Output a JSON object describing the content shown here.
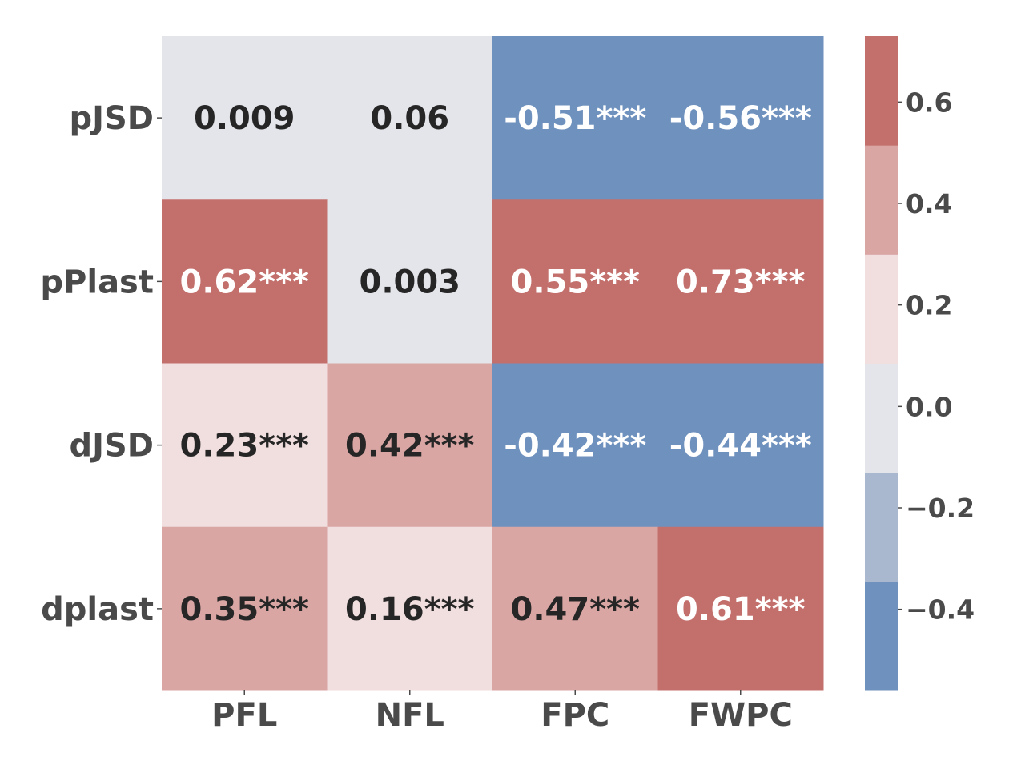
{
  "chart_data": {
    "type": "heatmap",
    "title": "",
    "xlabel": "",
    "ylabel": "",
    "x_categories": [
      "PFL",
      "NFL",
      "FPC",
      "FWPC"
    ],
    "y_categories": [
      "pJSD",
      "pPlast",
      "dJSD",
      "dplast"
    ],
    "values": [
      [
        0.009,
        0.06,
        -0.51,
        -0.56
      ],
      [
        0.62,
        0.003,
        0.55,
        0.73
      ],
      [
        0.23,
        0.42,
        -0.42,
        -0.44
      ],
      [
        0.35,
        0.16,
        0.47,
        0.61
      ]
    ],
    "annotations": [
      [
        "0.009",
        "0.06",
        "-0.51***",
        "-0.56***"
      ],
      [
        "0.62***",
        "0.003",
        "0.55***",
        "0.73***"
      ],
      [
        "0.23***",
        "0.42***",
        "-0.42***",
        "-0.44***"
      ],
      [
        "0.35***",
        "0.16***",
        "0.47***",
        "0.61***"
      ]
    ],
    "colorbar": {
      "range": [
        -0.56,
        0.73
      ],
      "ticks": [
        0.6,
        0.4,
        0.2,
        0.0,
        -0.2,
        -0.4
      ],
      "tick_labels": [
        "0.6",
        "0.4",
        "0.2",
        "0.0",
        "−0.2",
        "−0.4"
      ],
      "levels": [
        {
          "min": -0.56,
          "max": -0.345,
          "color": "#6f91be"
        },
        {
          "min": -0.345,
          "max": -0.13,
          "color": "#a9b8cf"
        },
        {
          "min": -0.13,
          "max": 0.085,
          "color": "#e4e5ea"
        },
        {
          "min": 0.085,
          "max": 0.3,
          "color": "#f1dede"
        },
        {
          "min": 0.3,
          "max": 0.515,
          "color": "#d9a6a4"
        },
        {
          "min": 0.515,
          "max": 0.73,
          "color": "#c3706d"
        }
      ]
    },
    "text_colors": {
      "dark": "#262626",
      "light": "#ffffff"
    },
    "legend": "right"
  }
}
